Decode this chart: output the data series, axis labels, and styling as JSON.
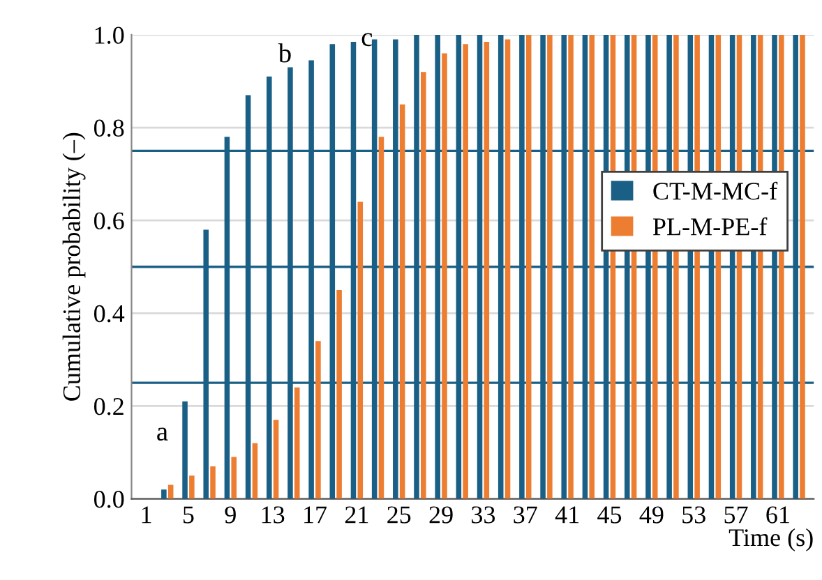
{
  "chart_data": {
    "type": "bar",
    "xlabel": "Time (s)",
    "ylabel": "Cumulative probability (–)",
    "categories": [
      "1",
      null,
      "5",
      null,
      "9",
      null,
      "13",
      null,
      "17",
      null,
      "21",
      null,
      "25",
      null,
      "29",
      null,
      "33",
      null,
      "37",
      null,
      "41",
      null,
      "45",
      null,
      "49",
      null,
      "53",
      null,
      "57",
      null,
      "61",
      null
    ],
    "series": [
      {
        "name": "CT-M-MC-f",
        "color": "#1a5f85",
        "values": [
          0,
          0.02,
          0.21,
          0.58,
          0.78,
          0.87,
          0.91,
          0.93,
          0.945,
          0.98,
          0.985,
          0.99,
          0.99,
          1.0,
          1.0,
          1.0,
          1.0,
          1.0,
          1.0,
          1.0,
          1.0,
          1.0,
          1.0,
          1.0,
          1.0,
          1.0,
          1.0,
          1.0,
          1.0,
          1.0,
          1.0,
          1.0
        ]
      },
      {
        "name": "PL-M-PE-f",
        "color": "#ed7d31",
        "values": [
          0,
          0.03,
          0.05,
          0.07,
          0.09,
          0.12,
          0.17,
          0.24,
          0.34,
          0.45,
          0.64,
          0.78,
          0.85,
          0.92,
          0.96,
          0.98,
          0.985,
          0.99,
          1.0,
          1.0,
          1.0,
          1.0,
          1.0,
          1.0,
          1.0,
          1.0,
          1.0,
          1.0,
          1.0,
          1.0,
          1.0,
          1.0
        ]
      }
    ],
    "ylim": [
      0,
      1.0
    ],
    "yticks": [
      {
        "value": 0,
        "label": "0.0"
      },
      {
        "value": 0.2,
        "label": "0.2"
      },
      {
        "value": 0.4,
        "label": "0.4"
      },
      {
        "value": 0.6,
        "label": "0.6"
      },
      {
        "value": 0.8,
        "label": "0.8"
      },
      {
        "value": 1.0,
        "label": "1.0"
      }
    ],
    "ref_lines": [
      {
        "axis": "y",
        "value": 0.25,
        "color": "#1a5f85"
      },
      {
        "axis": "y",
        "value": 0.5,
        "color": "#1a5f85"
      },
      {
        "axis": "y",
        "value": 0.75,
        "color": "#1a5f85"
      }
    ],
    "annotations": [
      "a",
      "b",
      "c"
    ],
    "grid": "y",
    "legend": "right"
  }
}
